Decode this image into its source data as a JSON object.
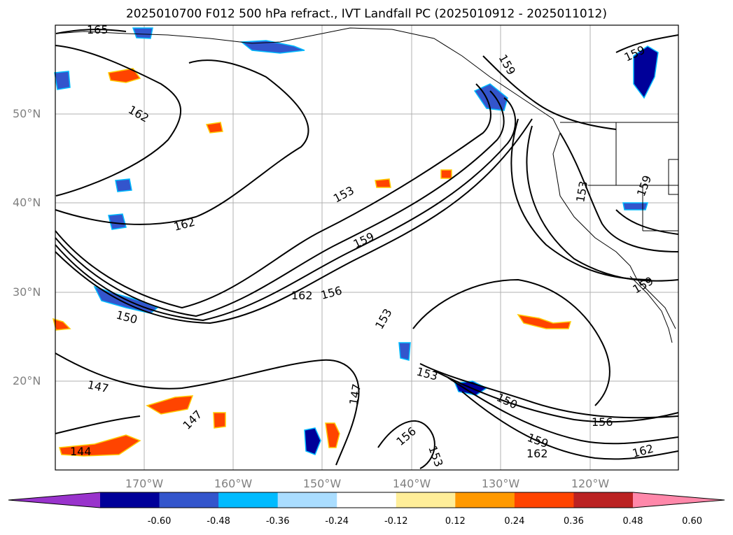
{
  "title": "2025010700 F012 500 hPa refract., IVT Landfall PC (2025010912 - 2025011012)",
  "axes": {
    "lat_ticks": [
      "50°N",
      "40°N",
      "30°N",
      "20°N"
    ],
    "lon_ticks": [
      "170°W",
      "160°W",
      "150°W",
      "140°W",
      "130°W",
      "120°W"
    ]
  },
  "contour_labels": [
    "165",
    "162",
    "162",
    "159",
    "159",
    "153",
    "153",
    "159",
    "162",
    "156",
    "153",
    "150",
    "147",
    "147",
    "147",
    "144",
    "153",
    "150",
    "156",
    "159",
    "162",
    "153",
    "159",
    "156",
    "162",
    "159"
  ],
  "colorbar": {
    "ticks": [
      "-0.60",
      "-0.48",
      "-0.36",
      "-0.24",
      "-0.12",
      "0.12",
      "0.24",
      "0.36",
      "0.48",
      "0.60"
    ],
    "colors": [
      "#9933cc",
      "#000099",
      "#3355cc",
      "#00bbff",
      "#aaddff",
      "#ffffff",
      "#ffee99",
      "#ff9900",
      "#ff4400",
      "#bb2222",
      "#ff88aa"
    ]
  },
  "chart_data": {
    "type": "map",
    "title": "2025010700 F012 500 hPa refract., IVT Landfall PC (2025010912 - 2025011012)",
    "xlabel": "",
    "ylabel": "",
    "xlim": [
      "180°W",
      "110°W"
    ],
    "ylim": [
      "10°N",
      "60°N"
    ],
    "grid": true,
    "contour_values": [
      144,
      147,
      150,
      153,
      156,
      159,
      162,
      165
    ],
    "colorbar_levels": [
      -0.6,
      -0.48,
      -0.36,
      -0.24,
      -0.12,
      0.12,
      0.24,
      0.36,
      0.48,
      0.6
    ],
    "legend": "bottom"
  }
}
